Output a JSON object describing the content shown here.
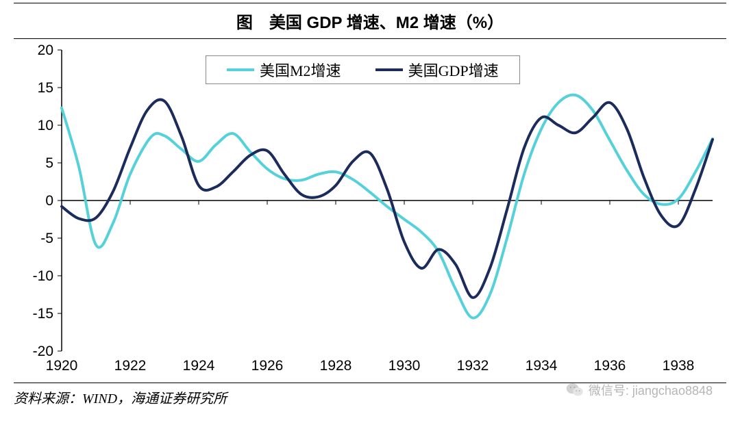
{
  "title": "图　美国 GDP 增速、M2 增速（%）",
  "source": "资料来源：WIND，海通证券研究所",
  "watermark": "微信号: jiangchao8848",
  "chart": {
    "type": "line",
    "background_color": "#ffffff",
    "x": {
      "min": 1920,
      "max": 1939,
      "ticks": [
        1920,
        1922,
        1924,
        1926,
        1928,
        1930,
        1932,
        1934,
        1936,
        1938
      ]
    },
    "y": {
      "min": -20,
      "max": 20,
      "ticks": [
        -20,
        -15,
        -10,
        -5,
        0,
        5,
        10,
        15,
        20
      ]
    },
    "legend": {
      "items": [
        {
          "label": "美国M2增速",
          "color": "#54d1d9"
        },
        {
          "label": "美国GDP增速",
          "color": "#1a2b5c"
        }
      ]
    },
    "series": [
      {
        "name": "美国M2增速",
        "color": "#54d1d9",
        "stroke_width": 4,
        "points": [
          [
            1920,
            12.3
          ],
          [
            1920.5,
            4.5
          ],
          [
            1921,
            -5.9
          ],
          [
            1921.5,
            -3.0
          ],
          [
            1922,
            3.5
          ],
          [
            1922.6,
            8.4
          ],
          [
            1923,
            8.6
          ],
          [
            1923.5,
            6.8
          ],
          [
            1924,
            5.2
          ],
          [
            1924.5,
            7.4
          ],
          [
            1925,
            8.9
          ],
          [
            1925.5,
            6.5
          ],
          [
            1926,
            4.2
          ],
          [
            1926.5,
            2.9
          ],
          [
            1927,
            2.7
          ],
          [
            1927.5,
            3.5
          ],
          [
            1928,
            3.8
          ],
          [
            1928.5,
            2.8
          ],
          [
            1929,
            1.1
          ],
          [
            1929.5,
            -0.8
          ],
          [
            1930,
            -2.5
          ],
          [
            1930.5,
            -4.2
          ],
          [
            1931,
            -6.8
          ],
          [
            1931.5,
            -11.8
          ],
          [
            1932,
            -15.6
          ],
          [
            1932.5,
            -12.5
          ],
          [
            1933,
            -5.0
          ],
          [
            1933.5,
            3.5
          ],
          [
            1934,
            9.5
          ],
          [
            1934.5,
            13.0
          ],
          [
            1935,
            14.0
          ],
          [
            1935.5,
            12.0
          ],
          [
            1936,
            8.0
          ],
          [
            1936.5,
            4.0
          ],
          [
            1937,
            0.8
          ],
          [
            1937.5,
            -0.5
          ],
          [
            1938,
            0.2
          ],
          [
            1938.5,
            3.8
          ],
          [
            1939,
            8.2
          ]
        ]
      },
      {
        "name": "美国GDP增速",
        "color": "#1a2b5c",
        "stroke_width": 4,
        "points": [
          [
            1920,
            -0.8
          ],
          [
            1920.5,
            -2.4
          ],
          [
            1921,
            -2.3
          ],
          [
            1921.5,
            1.2
          ],
          [
            1922,
            7.0
          ],
          [
            1922.5,
            12.0
          ],
          [
            1923,
            13.2
          ],
          [
            1923.5,
            8.5
          ],
          [
            1924,
            2.0
          ],
          [
            1924.5,
            1.8
          ],
          [
            1925,
            3.8
          ],
          [
            1925.5,
            6.0
          ],
          [
            1926,
            6.6
          ],
          [
            1926.5,
            3.5
          ],
          [
            1927,
            0.8
          ],
          [
            1927.5,
            0.5
          ],
          [
            1928,
            2.0
          ],
          [
            1928.5,
            5.2
          ],
          [
            1929,
            6.3
          ],
          [
            1929.5,
            1.5
          ],
          [
            1930,
            -5.5
          ],
          [
            1930.5,
            -9.0
          ],
          [
            1931,
            -6.5
          ],
          [
            1931.5,
            -8.5
          ],
          [
            1932,
            -12.9
          ],
          [
            1932.5,
            -9.0
          ],
          [
            1933,
            -1.2
          ],
          [
            1933.5,
            7.0
          ],
          [
            1934,
            11.0
          ],
          [
            1934.5,
            10.0
          ],
          [
            1935,
            9.0
          ],
          [
            1935.5,
            11.0
          ],
          [
            1936,
            13.0
          ],
          [
            1936.5,
            9.5
          ],
          [
            1937,
            3.0
          ],
          [
            1937.5,
            -2.0
          ],
          [
            1938,
            -3.3
          ],
          [
            1938.5,
            1.5
          ],
          [
            1939,
            8.1
          ]
        ]
      }
    ]
  }
}
